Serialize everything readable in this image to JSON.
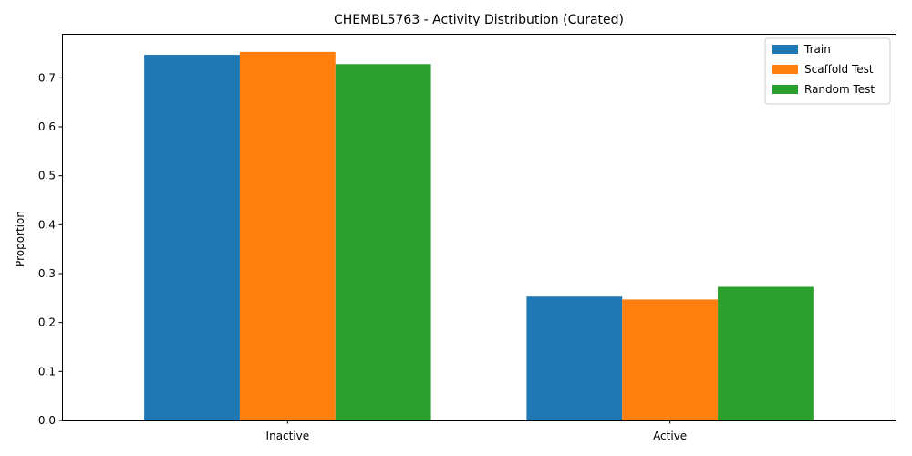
{
  "chart_data": {
    "type": "bar",
    "title": "CHEMBL5763 - Activity Distribution (Curated)",
    "xlabel": "",
    "ylabel": "Proportion",
    "categories": [
      "Inactive",
      "Active"
    ],
    "series": [
      {
        "name": "Train",
        "values": [
          0.747,
          0.253
        ],
        "color": "#1f77b4"
      },
      {
        "name": "Scaffold Test",
        "values": [
          0.753,
          0.247
        ],
        "color": "#ff7f0e"
      },
      {
        "name": "Random Test",
        "values": [
          0.728,
          0.273
        ],
        "color": "#2ca02c"
      }
    ],
    "ylim": [
      0,
      0.79
    ],
    "yticks": [
      "0.0",
      "0.1",
      "0.2",
      "0.3",
      "0.4",
      "0.5",
      "0.6",
      "0.7"
    ],
    "grid": false,
    "legend_position": "top-right"
  }
}
